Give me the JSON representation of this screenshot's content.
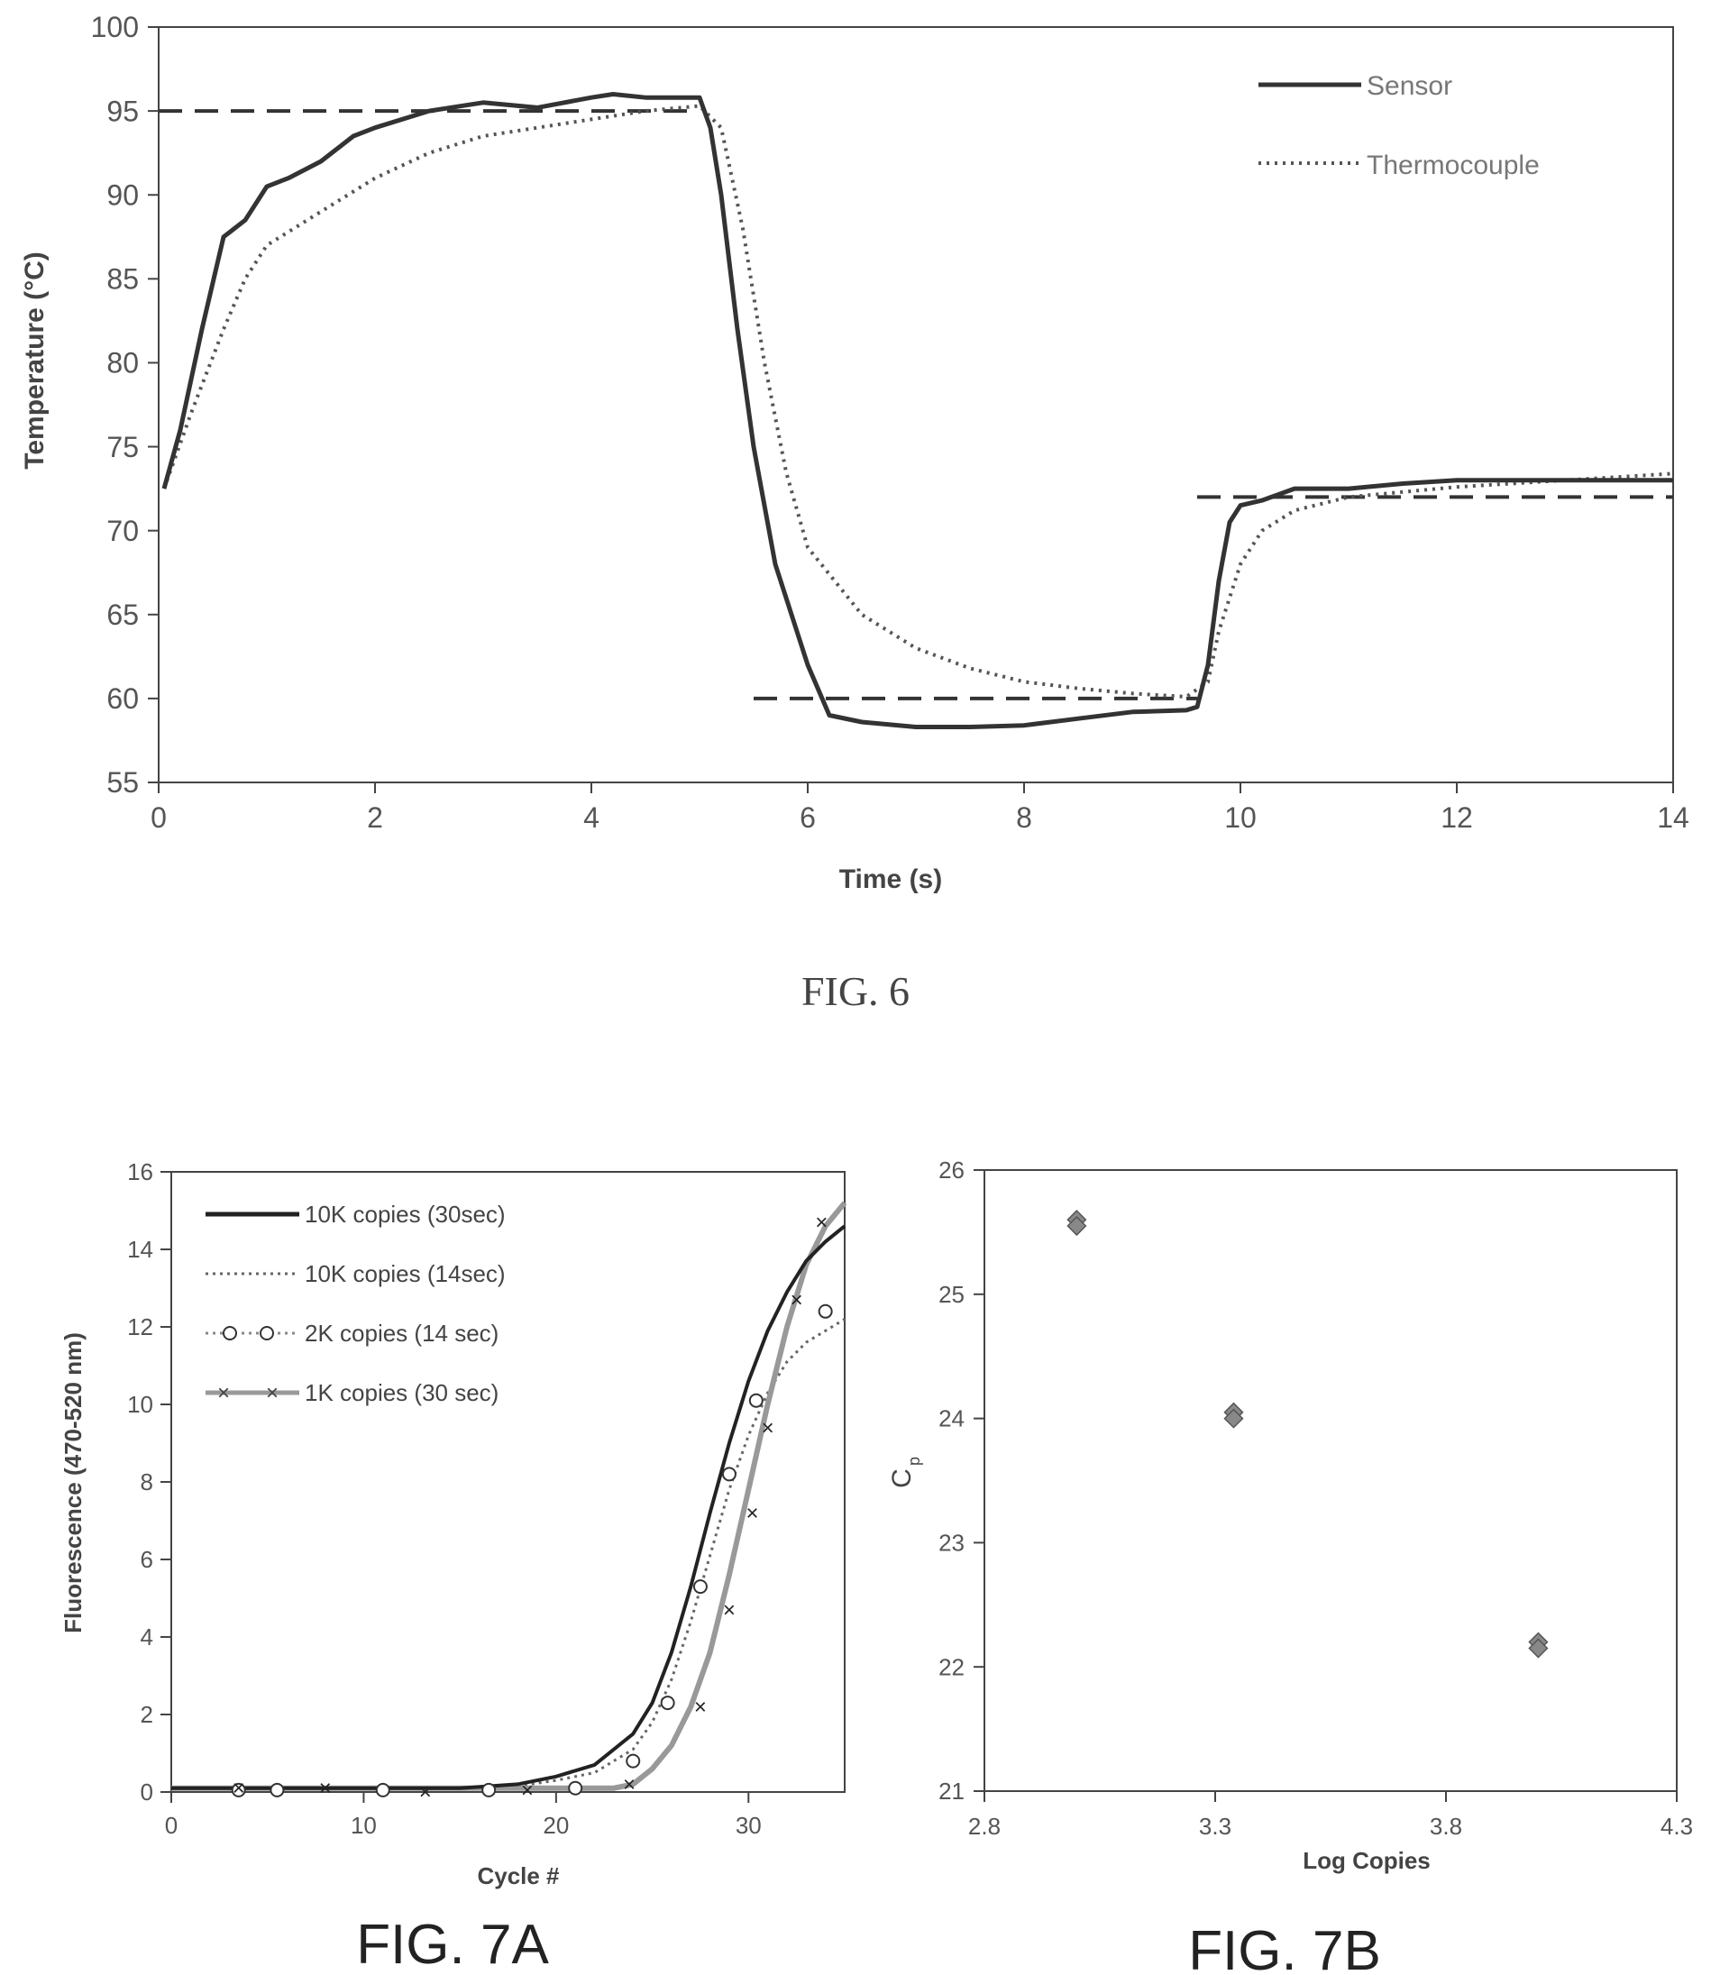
{
  "chart_data": [
    {
      "type": "line",
      "title": "",
      "xlabel": "Time (s)",
      "ylabel": "Temperature (°C)",
      "xlim": [
        0,
        14
      ],
      "ylim": [
        55,
        100
      ],
      "xticks": [
        0,
        2,
        4,
        6,
        8,
        10,
        12,
        14
      ],
      "yticks": [
        55,
        60,
        65,
        70,
        75,
        80,
        85,
        90,
        95,
        100
      ],
      "grid": false,
      "legend_position": "top-right",
      "series": [
        {
          "name": "Sensor",
          "style": "solid",
          "x": [
            0.05,
            0.2,
            0.4,
            0.6,
            0.8,
            1.0,
            1.2,
            1.5,
            1.8,
            2.0,
            2.5,
            3.0,
            3.5,
            4.0,
            4.2,
            4.5,
            5.0,
            5.1,
            5.2,
            5.35,
            5.5,
            5.7,
            6.0,
            6.2,
            6.5,
            7.0,
            7.5,
            8.0,
            8.5,
            9.0,
            9.5,
            9.6,
            9.7,
            9.8,
            9.9,
            10.0,
            10.2,
            10.5,
            11.0,
            11.5,
            12.0,
            12.5,
            13.0,
            13.5,
            14.0
          ],
          "y": [
            72.5,
            76,
            82,
            87.5,
            88.5,
            90.5,
            91,
            92,
            93.5,
            94,
            95,
            95.5,
            95.2,
            95.8,
            96,
            95.8,
            95.8,
            94,
            90,
            82,
            75,
            68,
            62,
            59,
            58.6,
            58.3,
            58.3,
            58.4,
            58.8,
            59.2,
            59.3,
            59.5,
            62,
            67,
            70.5,
            71.5,
            71.8,
            72.5,
            72.5,
            72.8,
            73,
            73,
            73,
            73,
            73
          ]
        },
        {
          "name": "Thermocouple",
          "style": "dotted",
          "x": [
            0.05,
            0.3,
            0.6,
            0.8,
            1.0,
            1.5,
            2.0,
            2.5,
            3.0,
            3.5,
            4.0,
            4.5,
            5.0,
            5.2,
            5.4,
            5.6,
            5.8,
            6.0,
            6.5,
            7.0,
            7.5,
            8.0,
            8.5,
            9.0,
            9.5,
            9.7,
            9.8,
            10.0,
            10.2,
            10.5,
            11.0,
            11.5,
            12.0,
            12.5,
            13.0,
            13.5,
            14.0
          ],
          "y": [
            72.5,
            77,
            82,
            85,
            87,
            89,
            91,
            92.5,
            93.5,
            94,
            94.5,
            95,
            95.3,
            94,
            88,
            80,
            73.5,
            69,
            65,
            63,
            61.8,
            61,
            60.6,
            60.3,
            60.1,
            61,
            64,
            68,
            70,
            71.2,
            72,
            72.3,
            72.6,
            72.8,
            73,
            73.2,
            73.4
          ]
        },
        {
          "name": "",
          "style": "dashed",
          "segments": [
            {
              "x": [
                0,
                5.0
              ],
              "y": [
                95,
                95
              ]
            },
            {
              "x": [
                5.5,
                9.6
              ],
              "y": [
                60,
                60
              ]
            },
            {
              "x": [
                9.6,
                14
              ],
              "y": [
                72,
                72
              ]
            }
          ]
        }
      ]
    },
    {
      "type": "line",
      "title": "",
      "xlabel": "Cycle #",
      "ylabel": "Fluorescence (470-520 nm)",
      "xlim": [
        0,
        35
      ],
      "ylim": [
        0,
        16
      ],
      "xticks": [
        0,
        10,
        20,
        30
      ],
      "yticks": [
        0,
        2,
        4,
        6,
        8,
        10,
        12,
        14,
        16
      ],
      "grid": false,
      "legend_position": "top-left",
      "series": [
        {
          "name": "10K copies (30sec)",
          "style": "solid-dark",
          "x": [
            0,
            5,
            10,
            15,
            18,
            20,
            22,
            24,
            25,
            26,
            27,
            28,
            29,
            30,
            31,
            32,
            33,
            34,
            35
          ],
          "y": [
            0.1,
            0.1,
            0.1,
            0.1,
            0.2,
            0.4,
            0.7,
            1.5,
            2.3,
            3.6,
            5.3,
            7.2,
            9,
            10.6,
            11.9,
            12.9,
            13.7,
            14.2,
            14.6
          ]
        },
        {
          "name": "10K copies (14sec)",
          "style": "dotted",
          "x": [
            0,
            5,
            10,
            15,
            18,
            20,
            22,
            24,
            25,
            26,
            27,
            28,
            29,
            30,
            31,
            32,
            33,
            34,
            35
          ],
          "y": [
            0.1,
            0.1,
            0.1,
            0.1,
            0.15,
            0.3,
            0.5,
            1.1,
            1.8,
            2.9,
            4.4,
            6.1,
            7.8,
            9.2,
            10.3,
            11.1,
            11.6,
            11.9,
            12.2
          ]
        },
        {
          "name": "2K copies (14 sec)",
          "style": "circles",
          "x": [
            3.5,
            5.5,
            11,
            16.5,
            21,
            24,
            25.8,
            27.5,
            29,
            30.4,
            34
          ],
          "y": [
            0.05,
            0.05,
            0.05,
            0.05,
            0.1,
            0.8,
            2.3,
            5.3,
            8.2,
            10.1,
            12.4
          ]
        },
        {
          "name": "1K copies (30 sec)",
          "style": "solid-gray-x",
          "x": [
            0,
            5,
            10,
            15,
            20,
            23,
            24,
            25,
            26,
            27,
            28,
            29,
            30,
            31,
            32,
            33,
            34,
            35
          ],
          "y": [
            0.1,
            0.1,
            0.1,
            0.1,
            0.1,
            0.1,
            0.2,
            0.6,
            1.2,
            2.2,
            3.6,
            5.6,
            7.8,
            10,
            12,
            13.6,
            14.6,
            15.2
          ]
        },
        {
          "name": "1K copies (30 sec) markers",
          "style": "x-markers",
          "x": [
            3.5,
            8,
            13.2,
            18.5,
            23.8,
            27.5,
            29,
            30.2,
            31,
            32.5,
            33.8
          ],
          "y": [
            0.1,
            0.1,
            0,
            0.05,
            0.2,
            2.2,
            4.7,
            7.2,
            9.4,
            12.7,
            14.7
          ]
        }
      ]
    },
    {
      "type": "scatter",
      "title": "",
      "xlabel": "Log Copies",
      "ylabel": "Cp",
      "xlim": [
        2.8,
        4.3
      ],
      "ylim": [
        21,
        26
      ],
      "xticks": [
        2.8,
        3.3,
        3.8,
        4.3
      ],
      "yticks": [
        21,
        22,
        23,
        24,
        25,
        26
      ],
      "grid": false,
      "series": [
        {
          "name": "",
          "x": [
            3.0,
            3.0,
            3.34,
            3.34,
            4.0,
            4.0
          ],
          "y": [
            25.6,
            25.55,
            24.05,
            24.0,
            22.2,
            22.15
          ]
        }
      ]
    }
  ],
  "captions": {
    "fig6": "FIG. 6",
    "fig7a": "FIG. 7A",
    "fig7b": "FIG. 7B"
  },
  "labels": {
    "cp_main": "C",
    "cp_sub": "p"
  }
}
